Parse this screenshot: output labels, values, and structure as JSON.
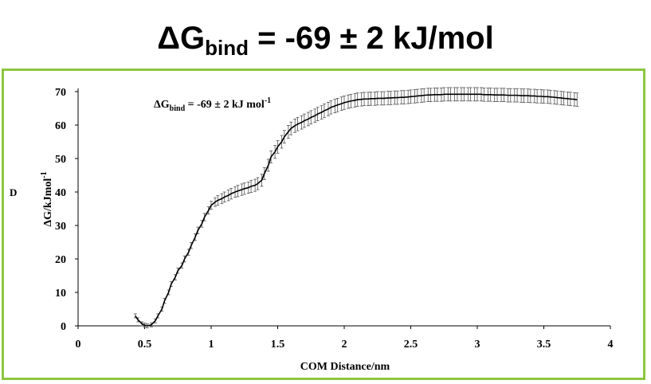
{
  "headline": {
    "prefix": "ΔG",
    "subscript": "bind",
    "suffix": " = -69 ± 2 kJ/mol"
  },
  "panel_letter": "D",
  "colors": {
    "frame": "#8cc63f",
    "line": "#000000",
    "errorbar": "#555555",
    "axis": "#000000"
  },
  "chart_data": {
    "type": "line",
    "xlabel": "COM Distance/nm",
    "ylabel": {
      "prefix": "ΔG/kJmol",
      "superscript": "-1"
    },
    "annotation": {
      "prefix": "ΔG",
      "subscript": "bind",
      "middle": " = -69 ± 2 kJ mol",
      "superscript": "-1"
    },
    "xlim": [
      0,
      4
    ],
    "ylim": [
      0,
      70
    ],
    "xticks": [
      "0",
      "0.5",
      "1",
      "1.5",
      "2",
      "2.5",
      "3",
      "3.5",
      "4"
    ],
    "yticks": [
      "0",
      "10",
      "20",
      "30",
      "40",
      "50",
      "60",
      "70"
    ],
    "grid": false,
    "legend": "none",
    "series": [
      {
        "x": [
          0.43,
          0.45,
          0.48,
          0.5,
          0.52,
          0.55,
          0.58,
          0.6,
          0.63,
          0.65,
          0.68,
          0.7,
          0.73,
          0.75,
          0.78,
          0.8,
          0.83,
          0.85,
          0.88,
          0.9,
          0.93,
          0.95,
          0.98,
          1.0,
          1.03,
          1.05,
          1.08,
          1.1,
          1.13,
          1.15,
          1.18,
          1.2,
          1.23,
          1.25,
          1.28,
          1.3,
          1.33,
          1.35,
          1.38,
          1.4,
          1.43,
          1.45,
          1.48,
          1.5,
          1.53,
          1.55,
          1.58,
          1.6,
          1.63,
          1.65,
          1.68,
          1.7,
          1.73,
          1.75,
          1.78,
          1.8,
          1.83,
          1.85,
          1.88,
          1.9,
          1.93,
          1.95,
          1.98,
          2.0,
          2.03,
          2.05,
          2.08,
          2.1,
          2.13,
          2.15,
          2.18,
          2.2,
          2.23,
          2.25,
          2.28,
          2.3,
          2.33,
          2.35,
          2.38,
          2.4,
          2.43,
          2.45,
          2.48,
          2.5,
          2.53,
          2.55,
          2.58,
          2.6,
          2.63,
          2.65,
          2.68,
          2.7,
          2.73,
          2.75,
          2.78,
          2.8,
          2.83,
          2.85,
          2.88,
          2.9,
          2.93,
          2.95,
          2.98,
          3.0,
          3.03,
          3.05,
          3.08,
          3.1,
          3.13,
          3.15,
          3.18,
          3.2,
          3.23,
          3.25,
          3.28,
          3.3,
          3.33,
          3.35,
          3.38,
          3.4,
          3.43,
          3.45,
          3.48,
          3.5,
          3.53,
          3.55,
          3.58,
          3.6,
          3.63,
          3.65,
          3.68,
          3.7,
          3.73,
          3.75
        ],
        "y": [
          3.0,
          1.8,
          0.6,
          0.2,
          0.0,
          0.3,
          1.5,
          3.0,
          5.0,
          7.5,
          10.0,
          12.5,
          14.5,
          16.5,
          18.0,
          20.0,
          22.0,
          24.0,
          26.5,
          28.5,
          30.5,
          32.5,
          34.5,
          36.0,
          37.0,
          37.5,
          38.0,
          38.5,
          39.0,
          39.5,
          40.0,
          40.3,
          40.7,
          41.0,
          41.3,
          41.7,
          42.0,
          42.5,
          43.5,
          45.5,
          48.0,
          50.5,
          52.0,
          53.5,
          55.0,
          56.5,
          58.0,
          59.0,
          59.8,
          60.3,
          60.8,
          61.3,
          61.8,
          62.3,
          62.8,
          63.3,
          63.8,
          64.3,
          64.8,
          65.3,
          65.7,
          66.0,
          66.4,
          66.7,
          67.0,
          67.2,
          67.4,
          67.6,
          67.7,
          67.8,
          67.8,
          67.9,
          67.9,
          68.0,
          68.0,
          68.0,
          68.1,
          68.1,
          68.2,
          68.2,
          68.3,
          68.3,
          68.4,
          68.5,
          68.6,
          68.7,
          68.8,
          68.9,
          69.0,
          69.0,
          69.1,
          69.1,
          69.1,
          69.2,
          69.2,
          69.2,
          69.2,
          69.2,
          69.2,
          69.2,
          69.2,
          69.2,
          69.2,
          69.2,
          69.2,
          69.1,
          69.1,
          69.1,
          69.0,
          69.0,
          69.0,
          69.0,
          68.9,
          68.9,
          68.9,
          68.9,
          68.8,
          68.8,
          68.8,
          68.7,
          68.7,
          68.6,
          68.6,
          68.5,
          68.5,
          68.4,
          68.3,
          68.2,
          68.1,
          68.0,
          67.9,
          67.8,
          67.7,
          67.6
        ],
        "err": [
          0.6,
          0.6,
          0.6,
          0.6,
          0.6,
          0.6,
          0.6,
          0.6,
          0.6,
          0.7,
          0.7,
          0.7,
          0.8,
          0.8,
          0.8,
          0.9,
          0.9,
          0.9,
          1.0,
          1.0,
          1.0,
          1.1,
          1.1,
          1.2,
          1.3,
          1.4,
          1.5,
          1.5,
          1.6,
          1.6,
          1.6,
          1.7,
          1.7,
          1.7,
          1.7,
          1.8,
          1.8,
          1.8,
          1.8,
          1.8,
          1.8,
          1.8,
          1.9,
          1.9,
          1.9,
          1.9,
          1.9,
          1.9,
          2.0,
          2.0,
          2.0,
          2.0,
          2.0,
          2.0,
          2.0,
          2.0,
          2.0,
          2.0,
          2.0,
          2.0,
          2.0,
          2.0,
          2.0,
          2.0,
          2.0,
          2.0,
          2.0,
          2.0,
          2.0,
          2.0,
          2.0,
          2.0,
          2.0,
          2.0,
          2.0,
          2.0,
          2.0,
          2.0,
          2.0,
          2.0,
          2.0,
          2.0,
          2.0,
          2.0,
          2.0,
          2.0,
          2.0,
          2.0,
          2.0,
          2.0,
          2.0,
          2.0,
          2.0,
          2.0,
          2.0,
          2.0,
          2.0,
          2.0,
          2.0,
          2.0,
          2.0,
          2.0,
          2.0,
          2.0,
          2.0,
          2.0,
          2.0,
          2.0,
          2.0,
          2.0,
          2.0,
          2.0,
          2.0,
          2.0,
          2.0,
          2.0,
          2.0,
          2.0,
          2.0,
          2.0,
          2.0,
          2.0,
          2.0,
          2.0,
          2.0,
          2.0,
          2.0,
          2.0,
          2.0,
          2.0,
          2.0,
          2.0,
          2.0,
          2.0
        ]
      }
    ]
  }
}
